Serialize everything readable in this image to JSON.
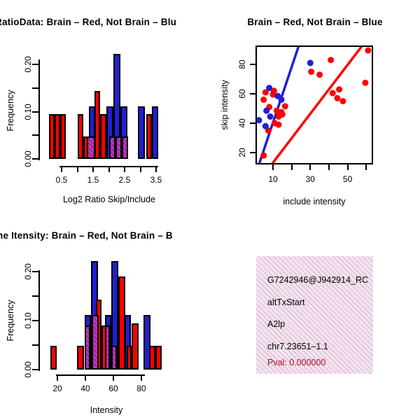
{
  "colors": {
    "red": "#ff0000",
    "blue": "#1f1fd6",
    "overlap_base": "#bd37bd",
    "overlap_stripe": "#8a2193",
    "info_bg": "#f8e3f2",
    "info_stripe": "#d9c6d4",
    "pval_text": "#a01225",
    "axis": "#000000"
  },
  "chart_data": [
    {
      "id": "hist_log2_ratio",
      "type": "bar",
      "title": "RatioData: Brain – Red, Not Brain – Blu",
      "xlabel": "Log2 Ratio Skip/Include",
      "ylabel": "Frequency",
      "xlim": [
        0.05,
        3.6
      ],
      "ylim": [
        0,
        0.23
      ],
      "x_axis": {
        "ticks": [
          0.5,
          1.0,
          1.5,
          2.0,
          2.5,
          3.0,
          3.5
        ],
        "labels": [
          "0.5",
          "",
          "1.5",
          "",
          "2.5",
          "",
          "3.5"
        ]
      },
      "y_axis": {
        "ticks": [
          0,
          0.05,
          0.1,
          0.15,
          0.2
        ],
        "labels": [
          "0.00",
          "",
          "0.10",
          "",
          "0.20"
        ]
      },
      "series": [
        {
          "name": "not_brain",
          "color": "blue",
          "bars": [
            [
              1.36,
              1.56,
              0.111
            ],
            [
              1.92,
              2.14,
              0.111
            ],
            [
              2.14,
              2.36,
              0.222
            ],
            [
              2.36,
              2.58,
              0.111
            ],
            [
              2.92,
              3.14,
              0.111
            ],
            [
              3.36,
              3.56,
              0.111
            ]
          ]
        },
        {
          "name": "brain",
          "color": "red",
          "bars": [
            [
              0.1,
              0.28,
              0.095
            ],
            [
              0.28,
              0.46,
              0.095
            ],
            [
              0.46,
              0.64,
              0.095
            ],
            [
              1.0,
              1.18,
              0.095
            ],
            [
              1.18,
              1.36,
              0.048
            ],
            [
              1.54,
              1.72,
              0.143
            ],
            [
              1.72,
              1.92,
              0.095
            ],
            [
              3.18,
              3.36,
              0.095
            ]
          ]
        },
        {
          "name": "overlap",
          "color": "hatch",
          "bars": [
            [
              1.3,
              1.56,
              0.048
            ],
            [
              2.02,
              2.22,
              0.048
            ],
            [
              2.22,
              2.42,
              0.048
            ],
            [
              2.42,
              2.62,
              0.048
            ]
          ]
        }
      ]
    },
    {
      "id": "scatter_intensity",
      "type": "scatter",
      "title": "Brain – Red, Not Brain – Blue",
      "xlabel": "include intensity",
      "ylabel": "skip intensity",
      "xlim": [
        0,
        63.5
      ],
      "ylim": [
        11,
        93
      ],
      "x_axis": {
        "ticks": [
          10,
          20,
          30,
          40,
          50,
          60
        ],
        "labels": [
          "10",
          "",
          "30",
          "",
          "50",
          ""
        ]
      },
      "y_axis": {
        "ticks": [
          20,
          40,
          60,
          80
        ],
        "labels": [
          "20",
          "40",
          "60",
          "80"
        ]
      },
      "series": [
        {
          "name": "brain",
          "color": "red",
          "points": [
            [
              6,
              61
            ],
            [
              5,
              56
            ],
            [
              10.5,
              62
            ],
            [
              10,
              59.5
            ],
            [
              8,
              51
            ],
            [
              12,
              48.5
            ],
            [
              16.5,
              51.5
            ],
            [
              14.5,
              47.5
            ],
            [
              15,
              46
            ],
            [
              13,
              44.5
            ],
            [
              13,
              39
            ],
            [
              11,
              40
            ],
            [
              7.5,
              35
            ],
            [
              5,
              18
            ],
            [
              30.5,
              75
            ],
            [
              35,
              73
            ],
            [
              41,
              83
            ],
            [
              61,
              89.5
            ],
            [
              59.5,
              67.5
            ],
            [
              42,
              60.5
            ],
            [
              45.5,
              63
            ],
            [
              44.5,
              57
            ],
            [
              47.5,
              55
            ]
          ]
        },
        {
          "name": "not_brain",
          "color": "blue",
          "points": [
            [
              8,
              64
            ],
            [
              12.5,
              58.5
            ],
            [
              14.5,
              56
            ],
            [
              6.5,
              48.5
            ],
            [
              8.5,
              44.5
            ],
            [
              2.5,
              42
            ],
            [
              6,
              38
            ],
            [
              30,
              81
            ]
          ]
        }
      ],
      "lines": [
        {
          "name": "blue-threshold-line",
          "color": "blue",
          "from": [
            2.5,
            12
          ],
          "to": [
            23.9,
            93
          ]
        },
        {
          "name": "red-threshold-line",
          "color": "red",
          "from": [
            9.3,
            12
          ],
          "to": [
            58,
            93
          ]
        }
      ]
    },
    {
      "id": "hist_gene_intensity",
      "type": "bar",
      "title": "ne Itensity: Brain – Red, Not Brain – B",
      "xlabel": "Intensity",
      "ylabel": "Frequency",
      "xlim": [
        13,
        96
      ],
      "ylim": [
        0,
        0.23
      ],
      "x_axis": {
        "ticks": [
          20,
          40,
          60,
          80
        ],
        "labels": [
          "20",
          "40",
          "60",
          "80"
        ]
      },
      "y_axis": {
        "ticks": [
          0,
          0.05,
          0.1,
          0.15,
          0.2
        ],
        "labels": [
          "0.00",
          "",
          "0.10",
          "",
          "0.20"
        ]
      },
      "series": [
        {
          "name": "not_brain",
          "color": "blue",
          "bars": [
            [
              39.5,
              44,
              0.111
            ],
            [
              44,
              49,
              0.222
            ],
            [
              54,
              58.5,
              0.111
            ],
            [
              58.5,
              63.5,
              0.222
            ],
            [
              68,
              72.5,
              0.111
            ],
            [
              81.5,
              86.5,
              0.111
            ]
          ]
        },
        {
          "name": "brain",
          "color": "red",
          "bars": [
            [
              15,
              19.5,
              0.048
            ],
            [
              34,
              39,
              0.048
            ],
            [
              47.5,
              51.5,
              0.143
            ],
            [
              51.5,
              55.5,
              0.09
            ],
            [
              63.5,
              68.5,
              0.19
            ],
            [
              69.5,
              73,
              0.048
            ],
            [
              73,
              78,
              0.095
            ],
            [
              85.5,
              90,
              0.048
            ],
            [
              90,
              94.5,
              0.048
            ]
          ]
        },
        {
          "name": "overlap",
          "color": "hatch",
          "bars": [
            [
              39.5,
              43.5,
              0.09
            ],
            [
              44.5,
              49.5,
              0.111
            ],
            [
              54,
              57.5,
              0.09
            ],
            [
              58.5,
              62.5,
              0.048
            ]
          ]
        }
      ]
    }
  ],
  "info_box": {
    "lines": [
      "G7242946@J942914_RC",
      "altTxStart",
      "A2lp",
      "chr7.23651–1.1"
    ],
    "pval_line": "Pval: 0.000000"
  }
}
